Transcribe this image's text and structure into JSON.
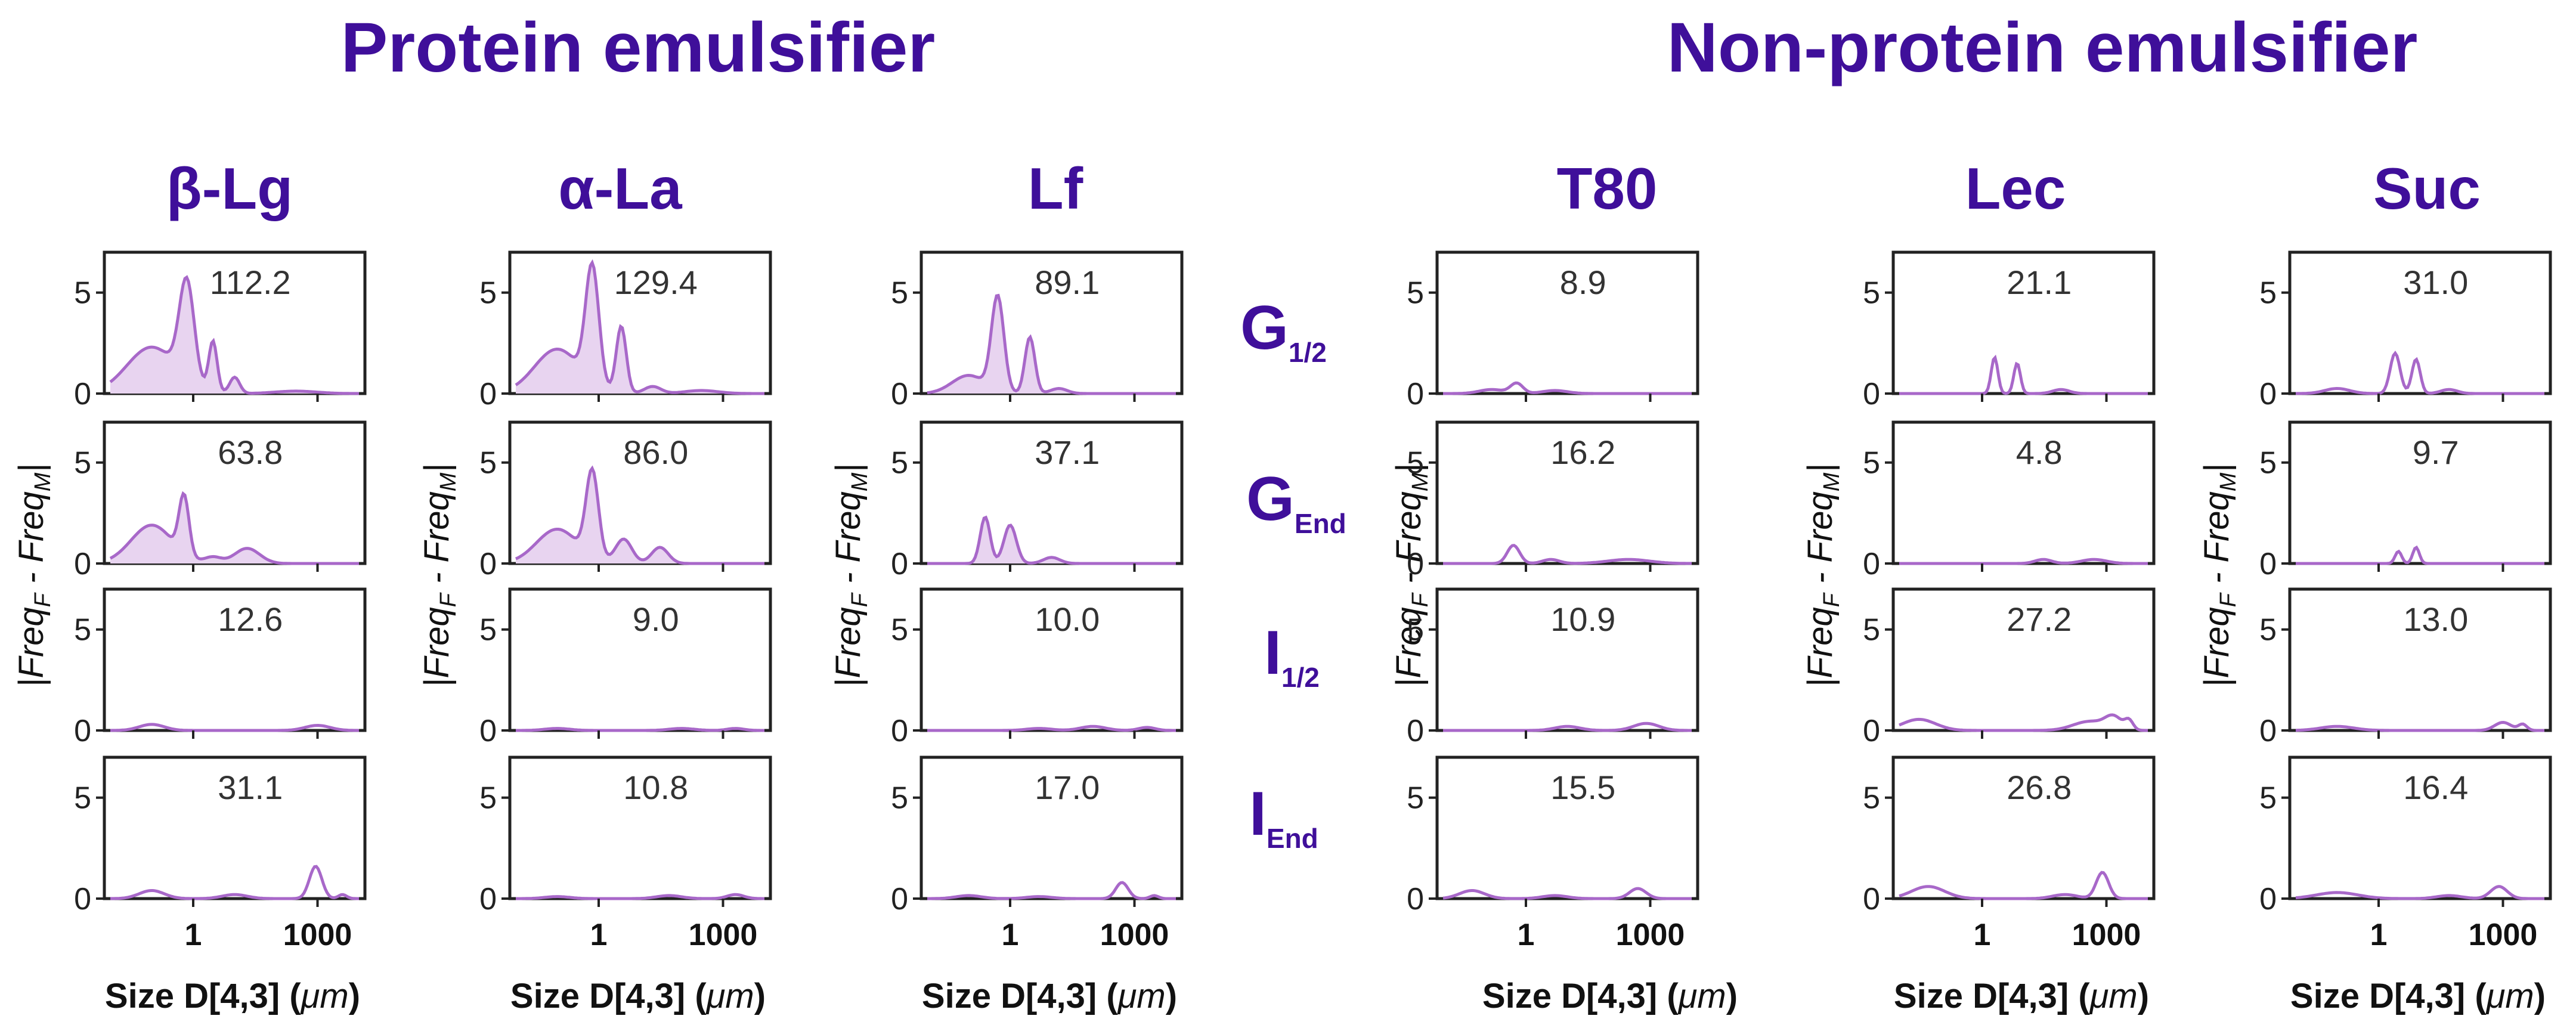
{
  "chart_data": {
    "type": "area",
    "group_titles": [
      "Protein emulsifier",
      "Non-protein emulsifier"
    ],
    "columns": [
      {
        "label": "β-Lg",
        "group": 0
      },
      {
        "label": "α-La",
        "group": 0
      },
      {
        "label": "Lf",
        "group": 0
      },
      {
        "label": "T80",
        "group": 1
      },
      {
        "label": "Lec",
        "group": 1
      },
      {
        "label": "Suc",
        "group": 1
      }
    ],
    "rows": [
      {
        "main": "G",
        "sub": "1/2"
      },
      {
        "main": "G",
        "sub": "End"
      },
      {
        "main": "I",
        "sub": "1/2"
      },
      {
        "main": "I",
        "sub": "End"
      }
    ],
    "ylabel": {
      "pre": "|Freq",
      "sub1": "F",
      "mid": " - Freq",
      "sub2": "M",
      "post": "|"
    },
    "xlabel": {
      "main": "Size D[4,3] (",
      "unit": "μm",
      "close": ")"
    },
    "x_scale": "log",
    "xlim": [
      0.01,
      10000
    ],
    "ylim": [
      0,
      7
    ],
    "yticks": [
      "0",
      "5"
    ],
    "ytick_values": [
      0,
      5
    ],
    "xticks": [
      "1",
      "1000"
    ],
    "xtick_values": [
      1,
      1000
    ],
    "panel_values": [
      [
        "112.2",
        "129.4",
        "89.1",
        "8.9",
        "21.1",
        "31.0"
      ],
      [
        "63.8",
        "86.0",
        "37.1",
        "16.2",
        "4.8",
        "9.7"
      ],
      [
        "12.6",
        "9.0",
        "10.0",
        "10.9",
        "27.2",
        "13.0"
      ],
      [
        "31.1",
        "10.8",
        "17.0",
        "15.5",
        "26.8",
        "16.4"
      ]
    ],
    "series": [
      [
        [
          [
            0.1,
            2.3,
            0.6
          ],
          [
            0.7,
            4.9,
            0.18
          ],
          [
            3,
            2.5,
            0.1
          ],
          [
            10,
            0.8,
            0.12
          ],
          [
            300,
            0.12,
            0.5
          ]
        ],
        [
          [
            0.1,
            2.2,
            0.55
          ],
          [
            0.7,
            5.8,
            0.16
          ],
          [
            3.5,
            3.3,
            0.12
          ],
          [
            20,
            0.35,
            0.2
          ],
          [
            300,
            0.15,
            0.4
          ]
        ],
        [
          [
            0.1,
            0.9,
            0.4
          ],
          [
            0.5,
            4.7,
            0.15
          ],
          [
            3,
            2.8,
            0.12
          ],
          [
            15,
            0.25,
            0.2
          ]
        ],
        [
          [
            0.15,
            0.2,
            0.3
          ],
          [
            0.6,
            0.5,
            0.15
          ],
          [
            5,
            0.15,
            0.3
          ]
        ],
        [
          [
            2,
            1.8,
            0.08
          ],
          [
            7,
            1.5,
            0.08
          ],
          [
            80,
            0.2,
            0.2
          ]
        ],
        [
          [
            0.1,
            0.25,
            0.3
          ],
          [
            2.5,
            2.0,
            0.12
          ],
          [
            8,
            1.7,
            0.1
          ],
          [
            50,
            0.2,
            0.2
          ]
        ]
      ],
      [
        [
          [
            0.1,
            1.9,
            0.5
          ],
          [
            0.6,
            2.9,
            0.12
          ],
          [
            3,
            0.3,
            0.2
          ],
          [
            20,
            0.75,
            0.3
          ]
        ],
        [
          [
            0.1,
            1.7,
            0.5
          ],
          [
            0.7,
            4.3,
            0.15
          ],
          [
            4,
            1.2,
            0.2
          ],
          [
            30,
            0.8,
            0.2
          ]
        ],
        [
          [
            0.25,
            2.3,
            0.12
          ],
          [
            1.0,
            1.9,
            0.15
          ],
          [
            10,
            0.3,
            0.2
          ]
        ],
        [
          [
            0.5,
            0.9,
            0.15
          ],
          [
            4,
            0.2,
            0.2
          ],
          [
            300,
            0.2,
            0.5
          ]
        ],
        [
          [
            30,
            0.2,
            0.2
          ],
          [
            500,
            0.2,
            0.3
          ]
        ],
        [
          [
            3,
            0.6,
            0.08
          ],
          [
            8,
            0.8,
            0.08
          ]
        ]
      ],
      [
        [
          [
            0.1,
            0.3,
            0.3
          ],
          [
            1000,
            0.25,
            0.3
          ]
        ],
        [
          [
            0.1,
            0.1,
            0.3
          ],
          [
            100,
            0.1,
            0.3
          ],
          [
            2000,
            0.1,
            0.2
          ]
        ],
        [
          [
            5,
            0.1,
            0.3
          ],
          [
            100,
            0.2,
            0.3
          ],
          [
            2000,
            0.15,
            0.2
          ]
        ],
        [
          [
            10,
            0.2,
            0.3
          ],
          [
            800,
            0.35,
            0.3
          ]
        ],
        [
          [
            0.03,
            0.55,
            0.4
          ],
          [
            400,
            0.45,
            0.4
          ],
          [
            1500,
            0.6,
            0.2
          ],
          [
            3500,
            0.45,
            0.1
          ]
        ],
        [
          [
            0.1,
            0.2,
            0.4
          ],
          [
            1000,
            0.4,
            0.2
          ],
          [
            3000,
            0.3,
            0.1
          ]
        ]
      ],
      [
        [
          [
            0.1,
            0.4,
            0.3
          ],
          [
            10,
            0.2,
            0.3
          ],
          [
            900,
            1.6,
            0.15
          ],
          [
            4000,
            0.2,
            0.1
          ]
        ],
        [
          [
            0.1,
            0.1,
            0.3
          ],
          [
            50,
            0.15,
            0.3
          ],
          [
            2000,
            0.2,
            0.2
          ]
        ],
        [
          [
            0.1,
            0.15,
            0.3
          ],
          [
            5,
            0.1,
            0.3
          ],
          [
            500,
            0.8,
            0.15
          ],
          [
            3000,
            0.15,
            0.1
          ]
        ],
        [
          [
            0.05,
            0.4,
            0.3
          ],
          [
            5,
            0.15,
            0.3
          ],
          [
            500,
            0.5,
            0.2
          ]
        ],
        [
          [
            0.05,
            0.6,
            0.4
          ],
          [
            800,
            1.3,
            0.15
          ],
          [
            100,
            0.2,
            0.3
          ]
        ],
        [
          [
            0.1,
            0.3,
            0.5
          ],
          [
            800,
            0.6,
            0.2
          ],
          [
            50,
            0.15,
            0.3
          ]
        ]
      ]
    ],
    "colors": {
      "line": "#a868c9",
      "fill": "#e8d4f0",
      "title": "#3f0f9a",
      "axis": "#222222"
    }
  }
}
